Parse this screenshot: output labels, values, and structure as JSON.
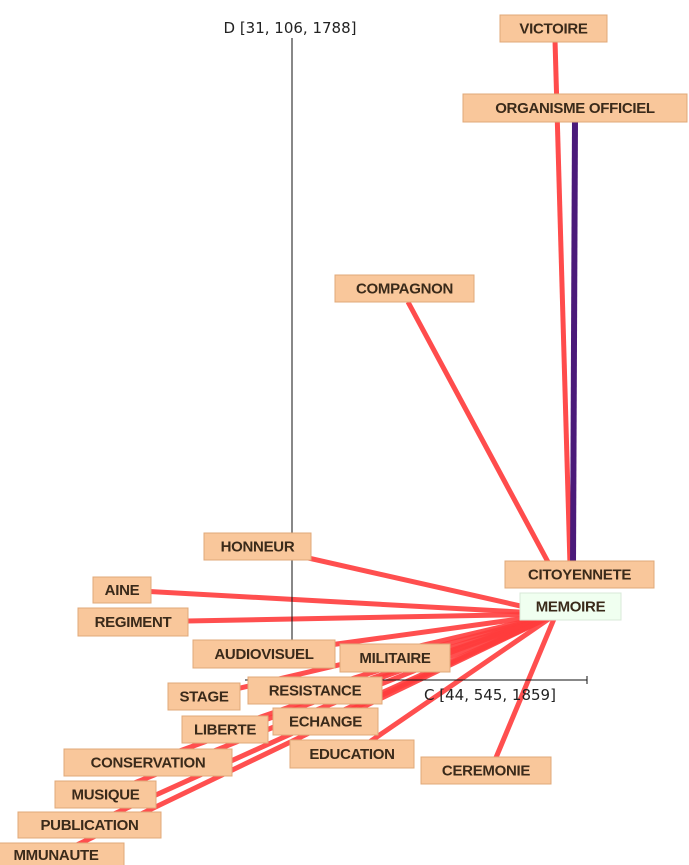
{
  "axes": {
    "vertical": "D [31, 106, 1788]",
    "horizontal": "C [44, 545, 1859]"
  },
  "nodes": [
    {
      "label": "VICTOIRE"
    },
    {
      "label": "ORGANISME OFFICIEL"
    },
    {
      "label": "COMPAGNON"
    },
    {
      "label": "HONNEUR"
    },
    {
      "label": "CITOYENNETE"
    },
    {
      "label": "MEMOIRE"
    },
    {
      "label": "AINE"
    },
    {
      "label": "REGIMENT"
    },
    {
      "label": "AUDIOVISUEL"
    },
    {
      "label": "MILITAIRE"
    },
    {
      "label": "STAGE"
    },
    {
      "label": "RESISTANCE"
    },
    {
      "label": "LIBERTE"
    },
    {
      "label": "ECHANGE"
    },
    {
      "label": "EDUCATION"
    },
    {
      "label": "CONSERVATION"
    },
    {
      "label": "CEREMONIE"
    },
    {
      "label": "MUSIQUE"
    },
    {
      "label": "PUBLICATION"
    },
    {
      "label": "MMUNAUTE"
    }
  ]
}
